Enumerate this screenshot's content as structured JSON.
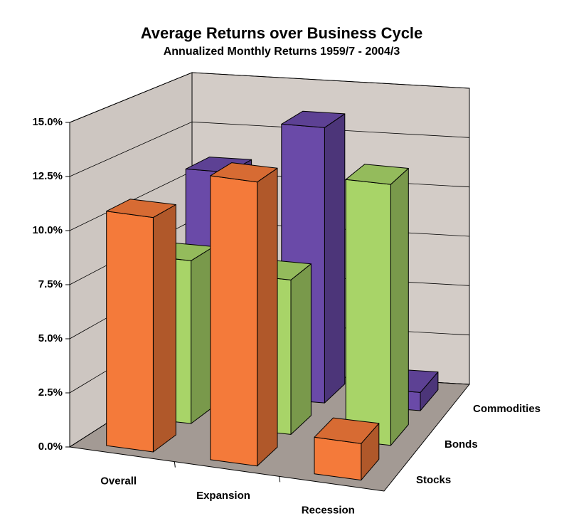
{
  "chart_data": {
    "type": "bar3d",
    "title": "Average Returns over Business Cycle",
    "subtitle": "Annualized Monthly Returns 1959/7 - 2004/3",
    "categories": [
      "Overall",
      "Expansion",
      "Recession"
    ],
    "series": [
      {
        "name": "Stocks",
        "color": "#f47a3a",
        "values": [
          10.9,
          13.2,
          1.7
        ]
      },
      {
        "name": "Bonds",
        "color": "#a8d468",
        "values": [
          7.8,
          7.4,
          12.5
        ]
      },
      {
        "name": "Commodities",
        "color": "#6a4aa8",
        "values": [
          11.0,
          13.6,
          0.9
        ]
      }
    ],
    "ylim": [
      0,
      15
    ],
    "yticks": [
      {
        "value": 0,
        "label": "0.0%"
      },
      {
        "value": 2.5,
        "label": "2.5%"
      },
      {
        "value": 5,
        "label": "5.0%"
      },
      {
        "value": 7.5,
        "label": "7.5%"
      },
      {
        "value": 10,
        "label": "10.0%"
      },
      {
        "value": 12.5,
        "label": "12.5%"
      },
      {
        "value": 15,
        "label": "15.0%"
      }
    ],
    "grid": true
  }
}
